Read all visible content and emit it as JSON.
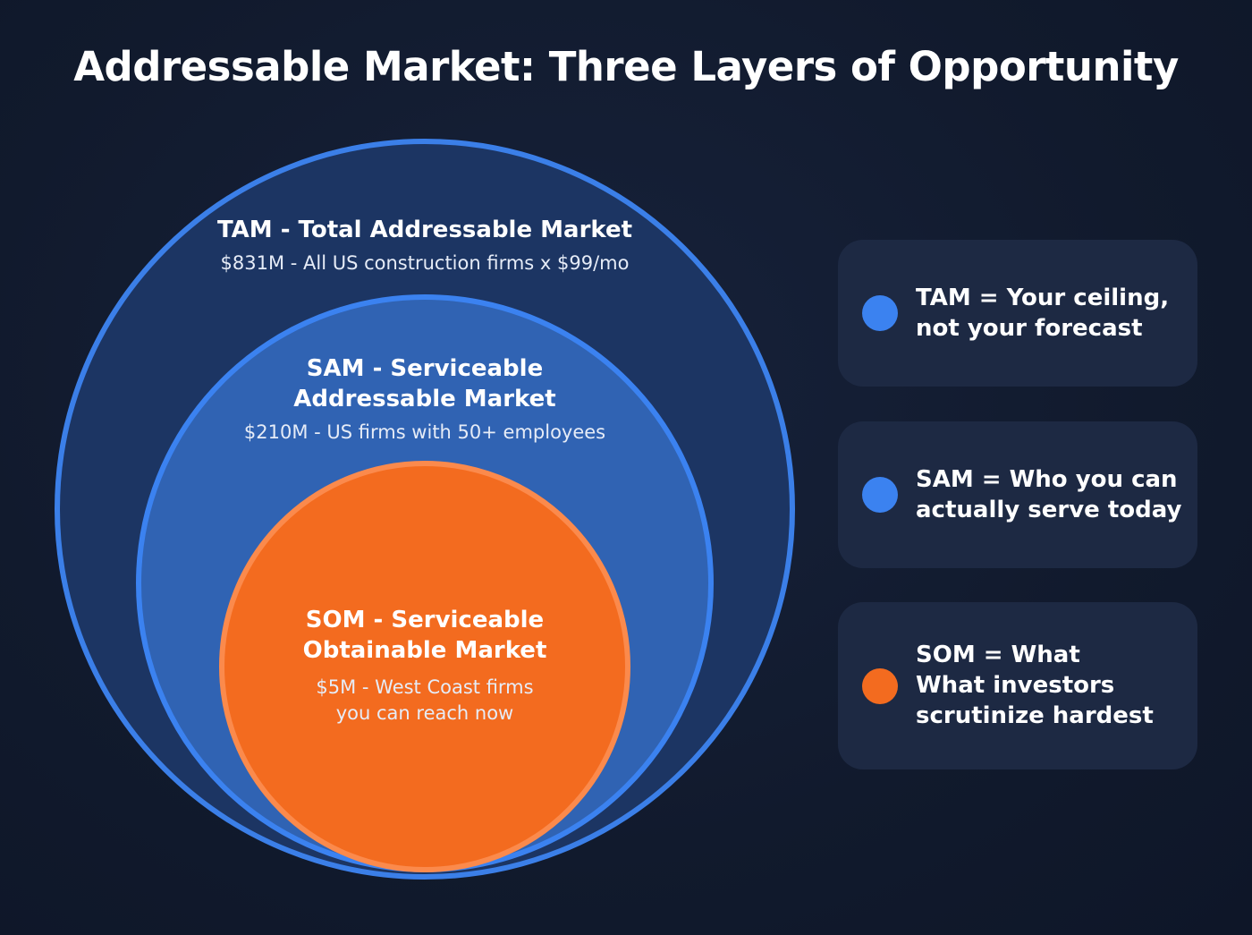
{
  "title": "Addressable Market: Three Layers of Opportunity",
  "colors": {
    "blue": "#3b82f0",
    "orange": "#f36b1f",
    "tam_fill": "#1c3563",
    "sam_fill": "#3063b3",
    "card": "#1d2943"
  },
  "layers": {
    "tam": {
      "heading": "TAM - Total Addressable Market",
      "detail": "$831M - All US construction firms x $99/mo"
    },
    "sam": {
      "heading_line1": "SAM - Serviceable",
      "heading_line2": "Addressable Market",
      "detail": "$210M - US firms with 50+ employees"
    },
    "som": {
      "heading_line1": "SOM - Serviceable",
      "heading_line2": "Obtainable Market",
      "detail_line1": "$5M - West Coast firms",
      "detail_line2": "you can reach now"
    }
  },
  "cards": [
    {
      "lines": [
        "TAM = Your ceiling,",
        "not your forecast"
      ],
      "dot": "blue"
    },
    {
      "lines": [
        "SAM = Who you can",
        "actually serve today"
      ],
      "dot": "blue"
    },
    {
      "lines": [
        "SOM = What",
        "What investors",
        "scrutinize hardest"
      ],
      "dot": "orange"
    }
  ]
}
